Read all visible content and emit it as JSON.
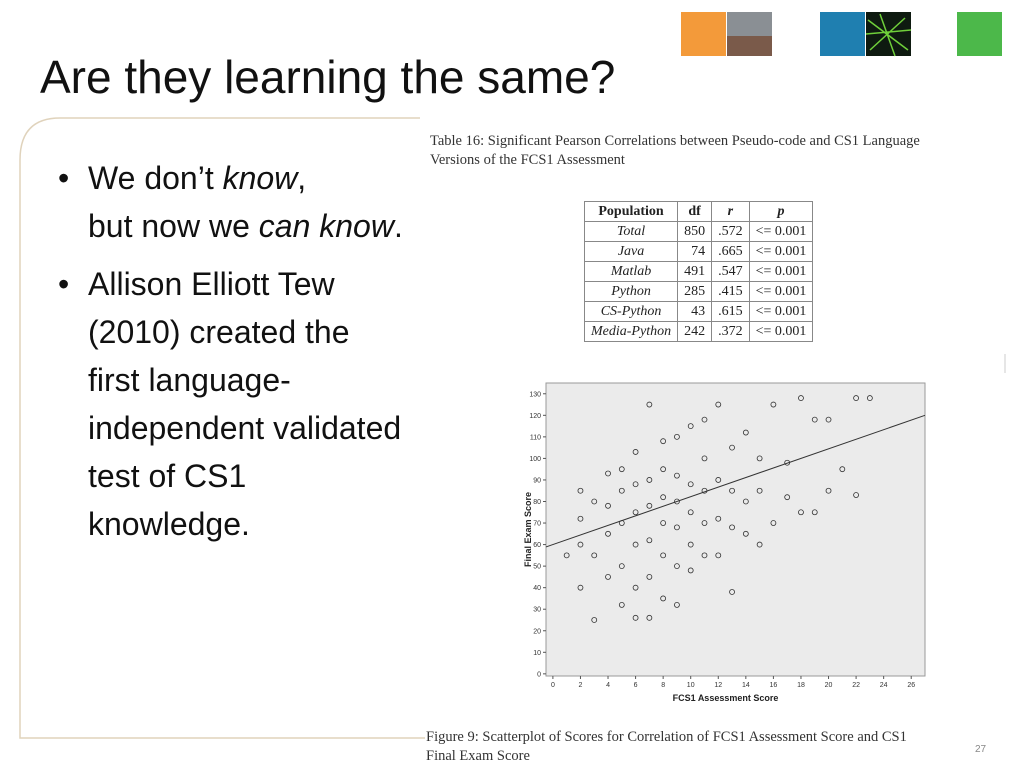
{
  "title": "Are they learning the same?",
  "bullets": [
    {
      "parts": [
        "We don’t ",
        "know",
        ",",
        "but now we ",
        "can know",
        "."
      ]
    },
    {
      "lines": [
        "Allison Elliott Tew",
        "(2010) created the",
        "first language-",
        "independent validated",
        "test of CS1",
        "knowledge."
      ]
    }
  ],
  "table_caption": [
    "Table 16: Significant Pearson Correlations between Pseudo-code and CS1 Language",
    "Versions of the FCS1 Assessment"
  ],
  "table": {
    "header": [
      "Population",
      "df",
      "r",
      "p"
    ],
    "rows": [
      [
        "Total",
        "850",
        ".572",
        "<= 0.001"
      ],
      [
        "Java",
        "74",
        ".665",
        "<= 0.001"
      ],
      [
        "Matlab",
        "491",
        ".547",
        "<= 0.001"
      ],
      [
        "Python",
        "285",
        ".415",
        "<= 0.001"
      ],
      [
        "CS-Python",
        "43",
        ".615",
        "<= 0.001"
      ],
      [
        "Media-Python",
        "242",
        ".372",
        "<= 0.001"
      ]
    ]
  },
  "chart_data": {
    "type": "scatter",
    "x_label": "FCS1 Assessment Score",
    "y_label": "Final Exam Score",
    "x": [
      1,
      2,
      2,
      2,
      2,
      3,
      3,
      3,
      4,
      4,
      4,
      4,
      5,
      5,
      5,
      5,
      5,
      6,
      6,
      6,
      6,
      6,
      6,
      7,
      7,
      7,
      7,
      7,
      7,
      8,
      8,
      8,
      8,
      8,
      8,
      9,
      9,
      9,
      9,
      9,
      9,
      10,
      10,
      10,
      10,
      10,
      11,
      11,
      11,
      11,
      11,
      12,
      12,
      12,
      12,
      13,
      13,
      13,
      13,
      14,
      14,
      14,
      15,
      15,
      15,
      16,
      16,
      17,
      17,
      18,
      18,
      19,
      19,
      20,
      20,
      21,
      22,
      22,
      23
    ],
    "y": [
      55,
      40,
      60,
      72,
      85,
      25,
      55,
      80,
      45,
      65,
      78,
      93,
      32,
      50,
      70,
      85,
      95,
      26,
      40,
      60,
      75,
      88,
      103,
      26,
      45,
      62,
      78,
      90,
      125,
      35,
      55,
      70,
      82,
      95,
      108,
      32,
      50,
      68,
      80,
      92,
      110,
      48,
      60,
      75,
      88,
      115,
      55,
      70,
      85,
      100,
      118,
      55,
      72,
      90,
      125,
      38,
      68,
      85,
      105,
      65,
      80,
      112,
      60,
      85,
      100,
      70,
      125,
      82,
      98,
      75,
      128,
      75,
      118,
      85,
      118,
      95,
      83,
      128,
      128
    ],
    "color": "#333333",
    "trend_line": {
      "x": [
        -0.5,
        27
      ],
      "y": [
        58.9,
        120
      ],
      "color": "#333333"
    },
    "xlim": [
      -0.5,
      27
    ],
    "xticks": [
      0,
      2,
      4,
      6,
      8,
      10,
      12,
      14,
      16,
      18,
      20,
      22,
      24,
      26
    ],
    "ylim": [
      -1,
      135
    ],
    "yticks": [
      0,
      10,
      20,
      30,
      40,
      50,
      60,
      70,
      80,
      90,
      100,
      110,
      120,
      130
    ]
  },
  "figure_caption": [
    "Figure 9: Scatterplot of Scores for Correlation of FCS1 Assessment Score and CS1",
    "Final Exam Score"
  ],
  "page_number": "27"
}
